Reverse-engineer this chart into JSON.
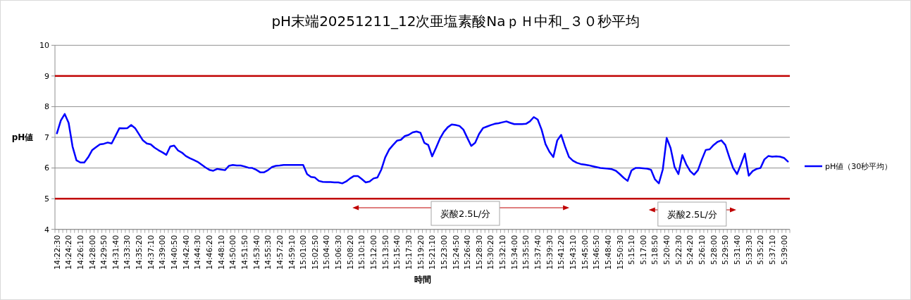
{
  "chart_data": {
    "type": "line",
    "title": "pH末端20251211_12次亜塩素酸NaｐＨ中和_３０秒平均",
    "xlabel": "時間",
    "ylabel": "pH値",
    "categories": [
      "14:22:30",
      null,
      null,
      "14:24:20",
      null,
      null,
      "14:26:10",
      null,
      null,
      "14:28:00",
      null,
      null,
      "14:29:50",
      null,
      null,
      "14:31:40",
      null,
      null,
      "14:33:30",
      null,
      null,
      "14:35:20",
      null,
      null,
      "14:37:10",
      null,
      null,
      "14:39:00",
      null,
      null,
      "14:40:50",
      null,
      null,
      "14:42:40",
      null,
      null,
      "14:44:30",
      null,
      null,
      "14:46:20",
      null,
      null,
      "14:48:10",
      null,
      null,
      "14:50:00",
      null,
      null,
      "14:51:50",
      null,
      null,
      "14:53:40",
      null,
      null,
      "14:55:30",
      null,
      null,
      "14:57:20",
      null,
      null,
      "14:59:10",
      null,
      null,
      "15:01:00",
      null,
      null,
      "15:02:50",
      null,
      null,
      "15:04:40",
      null,
      null,
      "15:06:30",
      null,
      null,
      "15:08:20",
      null,
      null,
      "15:10:10",
      null,
      null,
      "15:12:00",
      null,
      null,
      "15:13:50",
      null,
      null,
      "15:15:40",
      null,
      null,
      "15:17:30",
      null,
      null,
      "15:19:20",
      null,
      null,
      "15:21:10",
      null,
      null,
      "15:23:00",
      null,
      null,
      "15:24:50",
      null,
      null,
      "15:26:40",
      null,
      null,
      "15:28:30",
      null,
      null,
      "15:30:20",
      null,
      null,
      "15:32:10",
      null,
      null,
      "15:34:00",
      null,
      null,
      "15:35:50",
      null,
      null,
      "15:37:40",
      null,
      null,
      "15:39:30",
      null,
      null,
      "15:41:20",
      null,
      null,
      "15:43:10",
      null,
      null,
      "15:45:00",
      null,
      null,
      "15:46:50",
      null,
      null,
      "15:48:40",
      null,
      null,
      "15:50:30",
      null,
      null,
      "5:15:10",
      null,
      null,
      "5:17:00",
      null,
      null,
      "5:18:50",
      null,
      null,
      "5:20:40",
      null,
      null,
      "5:22:30",
      null,
      null,
      "5:24:20",
      null,
      null,
      "5:26:10",
      null,
      null,
      "5:28:00",
      null,
      null,
      "5:29:50",
      null,
      null,
      "5:31:40",
      null,
      null,
      "5:33:30",
      null,
      null,
      "5:35:20",
      null,
      null,
      "5:37:10",
      null,
      null,
      "5:39:00",
      null
    ],
    "series": [
      {
        "name": "pH値（30秒平均）",
        "color": "#0000ff",
        "values": [
          7.13,
          7.55,
          7.76,
          7.47,
          6.7,
          6.25,
          6.18,
          6.18,
          6.35,
          6.58,
          6.68,
          6.77,
          6.79,
          6.83,
          6.8,
          7.05,
          7.3,
          7.29,
          7.3,
          7.4,
          7.3,
          7.1,
          6.9,
          6.8,
          6.77,
          6.66,
          6.58,
          6.51,
          6.43,
          6.7,
          6.73,
          6.57,
          6.5,
          6.39,
          6.32,
          6.26,
          6.2,
          6.11,
          6.02,
          5.94,
          5.91,
          5.97,
          5.95,
          5.93,
          6.07,
          6.1,
          6.08,
          6.08,
          6.05,
          6.01,
          6.0,
          5.94,
          5.86,
          5.86,
          5.93,
          6.03,
          6.07,
          6.08,
          6.1,
          6.1,
          6.1,
          6.1,
          6.1,
          6.1,
          5.8,
          5.71,
          5.69,
          5.58,
          5.55,
          5.54,
          5.54,
          5.53,
          5.53,
          5.5,
          5.56,
          5.66,
          5.74,
          5.74,
          5.64,
          5.53,
          5.56,
          5.66,
          5.69,
          5.95,
          6.35,
          6.6,
          6.75,
          6.89,
          6.92,
          7.04,
          7.08,
          7.16,
          7.19,
          7.15,
          6.82,
          6.75,
          6.38,
          6.66,
          6.96,
          7.18,
          7.33,
          7.42,
          7.4,
          7.37,
          7.25,
          6.98,
          6.72,
          6.82,
          7.11,
          7.3,
          7.35,
          7.4,
          7.44,
          7.46,
          7.49,
          7.52,
          7.47,
          7.43,
          7.43,
          7.43,
          7.44,
          7.52,
          7.66,
          7.58,
          7.25,
          6.78,
          6.53,
          6.36,
          6.9,
          7.08,
          6.7,
          6.36,
          6.24,
          6.17,
          6.13,
          6.11,
          6.09,
          6.06,
          6.03,
          6.0,
          5.99,
          5.98,
          5.96,
          5.91,
          5.8,
          5.68,
          5.58,
          5.92,
          6.0,
          6.0,
          5.99,
          5.98,
          5.94,
          5.63,
          5.5,
          5.95,
          6.98,
          6.65,
          6.04,
          5.8,
          6.42,
          6.12,
          5.9,
          5.78,
          5.93,
          6.28,
          6.59,
          6.61,
          6.75,
          6.85,
          6.9,
          6.75,
          6.36,
          6.0,
          5.8,
          6.12,
          6.47,
          5.75,
          5.9,
          5.97,
          6.0,
          6.28,
          6.39,
          6.37,
          6.38,
          6.37,
          6.33,
          6.21
        ]
      }
    ],
    "ylim": [
      4,
      10
    ],
    "yticks": [
      4,
      5,
      6,
      7,
      8,
      9,
      10
    ],
    "grid": "y",
    "legend": "right",
    "ref_lines": [
      {
        "axis": "y",
        "value": 9,
        "color": "#c00000"
      },
      {
        "axis": "y",
        "value": 5,
        "color": "#c00000"
      }
    ],
    "annotations": [
      "炭酸2.5L/分",
      "炭酸2.5L/分"
    ]
  }
}
